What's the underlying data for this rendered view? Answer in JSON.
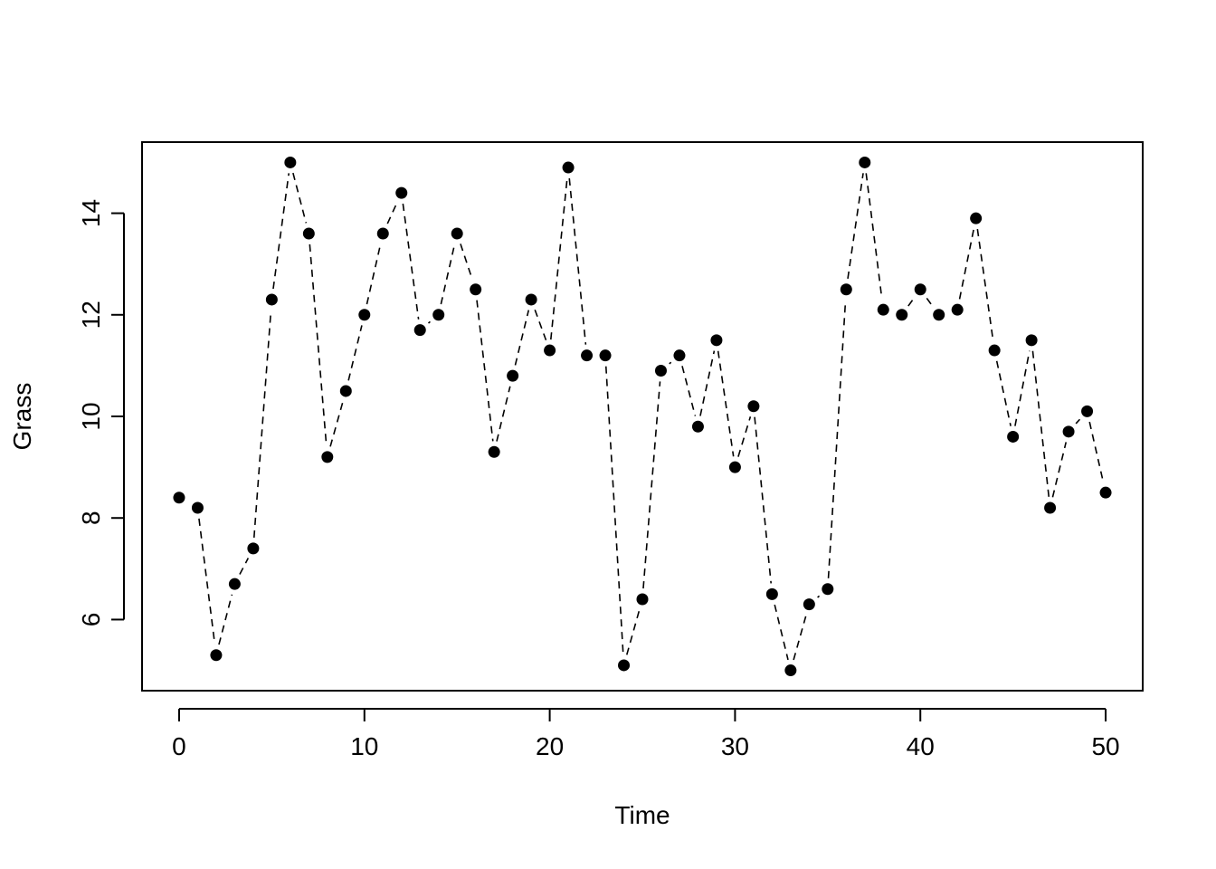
{
  "chart_data": {
    "type": "line",
    "title": "",
    "xlabel": "Time",
    "ylabel": "Grass",
    "xlim": [
      -2,
      52
    ],
    "ylim": [
      4.6,
      15.4
    ],
    "x_ticks": [
      0,
      10,
      20,
      30,
      40,
      50
    ],
    "y_ticks": [
      6,
      8,
      10,
      12,
      14
    ],
    "grid": false,
    "line_style": "dashed",
    "marker": "filled-circle",
    "series": [
      {
        "x": [
          0,
          1,
          2,
          3,
          4,
          5,
          6,
          7,
          8,
          9,
          10,
          11,
          12,
          13,
          14,
          15,
          16,
          17,
          18,
          19,
          20,
          21,
          22,
          23,
          24,
          25,
          26,
          27,
          28,
          29,
          30,
          31,
          32,
          33,
          34,
          35,
          36,
          37,
          38,
          39,
          40,
          41,
          42,
          43,
          44,
          45,
          46,
          47,
          48,
          49,
          50
        ],
        "values": [
          8.4,
          8.2,
          5.3,
          6.7,
          7.4,
          12.3,
          15.0,
          13.6,
          9.2,
          10.5,
          12.0,
          13.6,
          14.4,
          11.7,
          12.0,
          13.6,
          12.5,
          9.3,
          10.8,
          12.3,
          11.3,
          14.9,
          11.2,
          11.2,
          5.1,
          6.4,
          10.9,
          11.2,
          9.8,
          11.5,
          9.0,
          10.2,
          6.5,
          5.0,
          6.3,
          6.6,
          12.5,
          15.0,
          12.1,
          12.0,
          12.5,
          12.0,
          12.1,
          13.9,
          11.3,
          9.6,
          11.5,
          8.2,
          9.7,
          10.1,
          8.5
        ]
      }
    ]
  },
  "colors": {
    "line": "#000000",
    "marker": "#000000",
    "frame": "#000000",
    "background": "#ffffff"
  }
}
